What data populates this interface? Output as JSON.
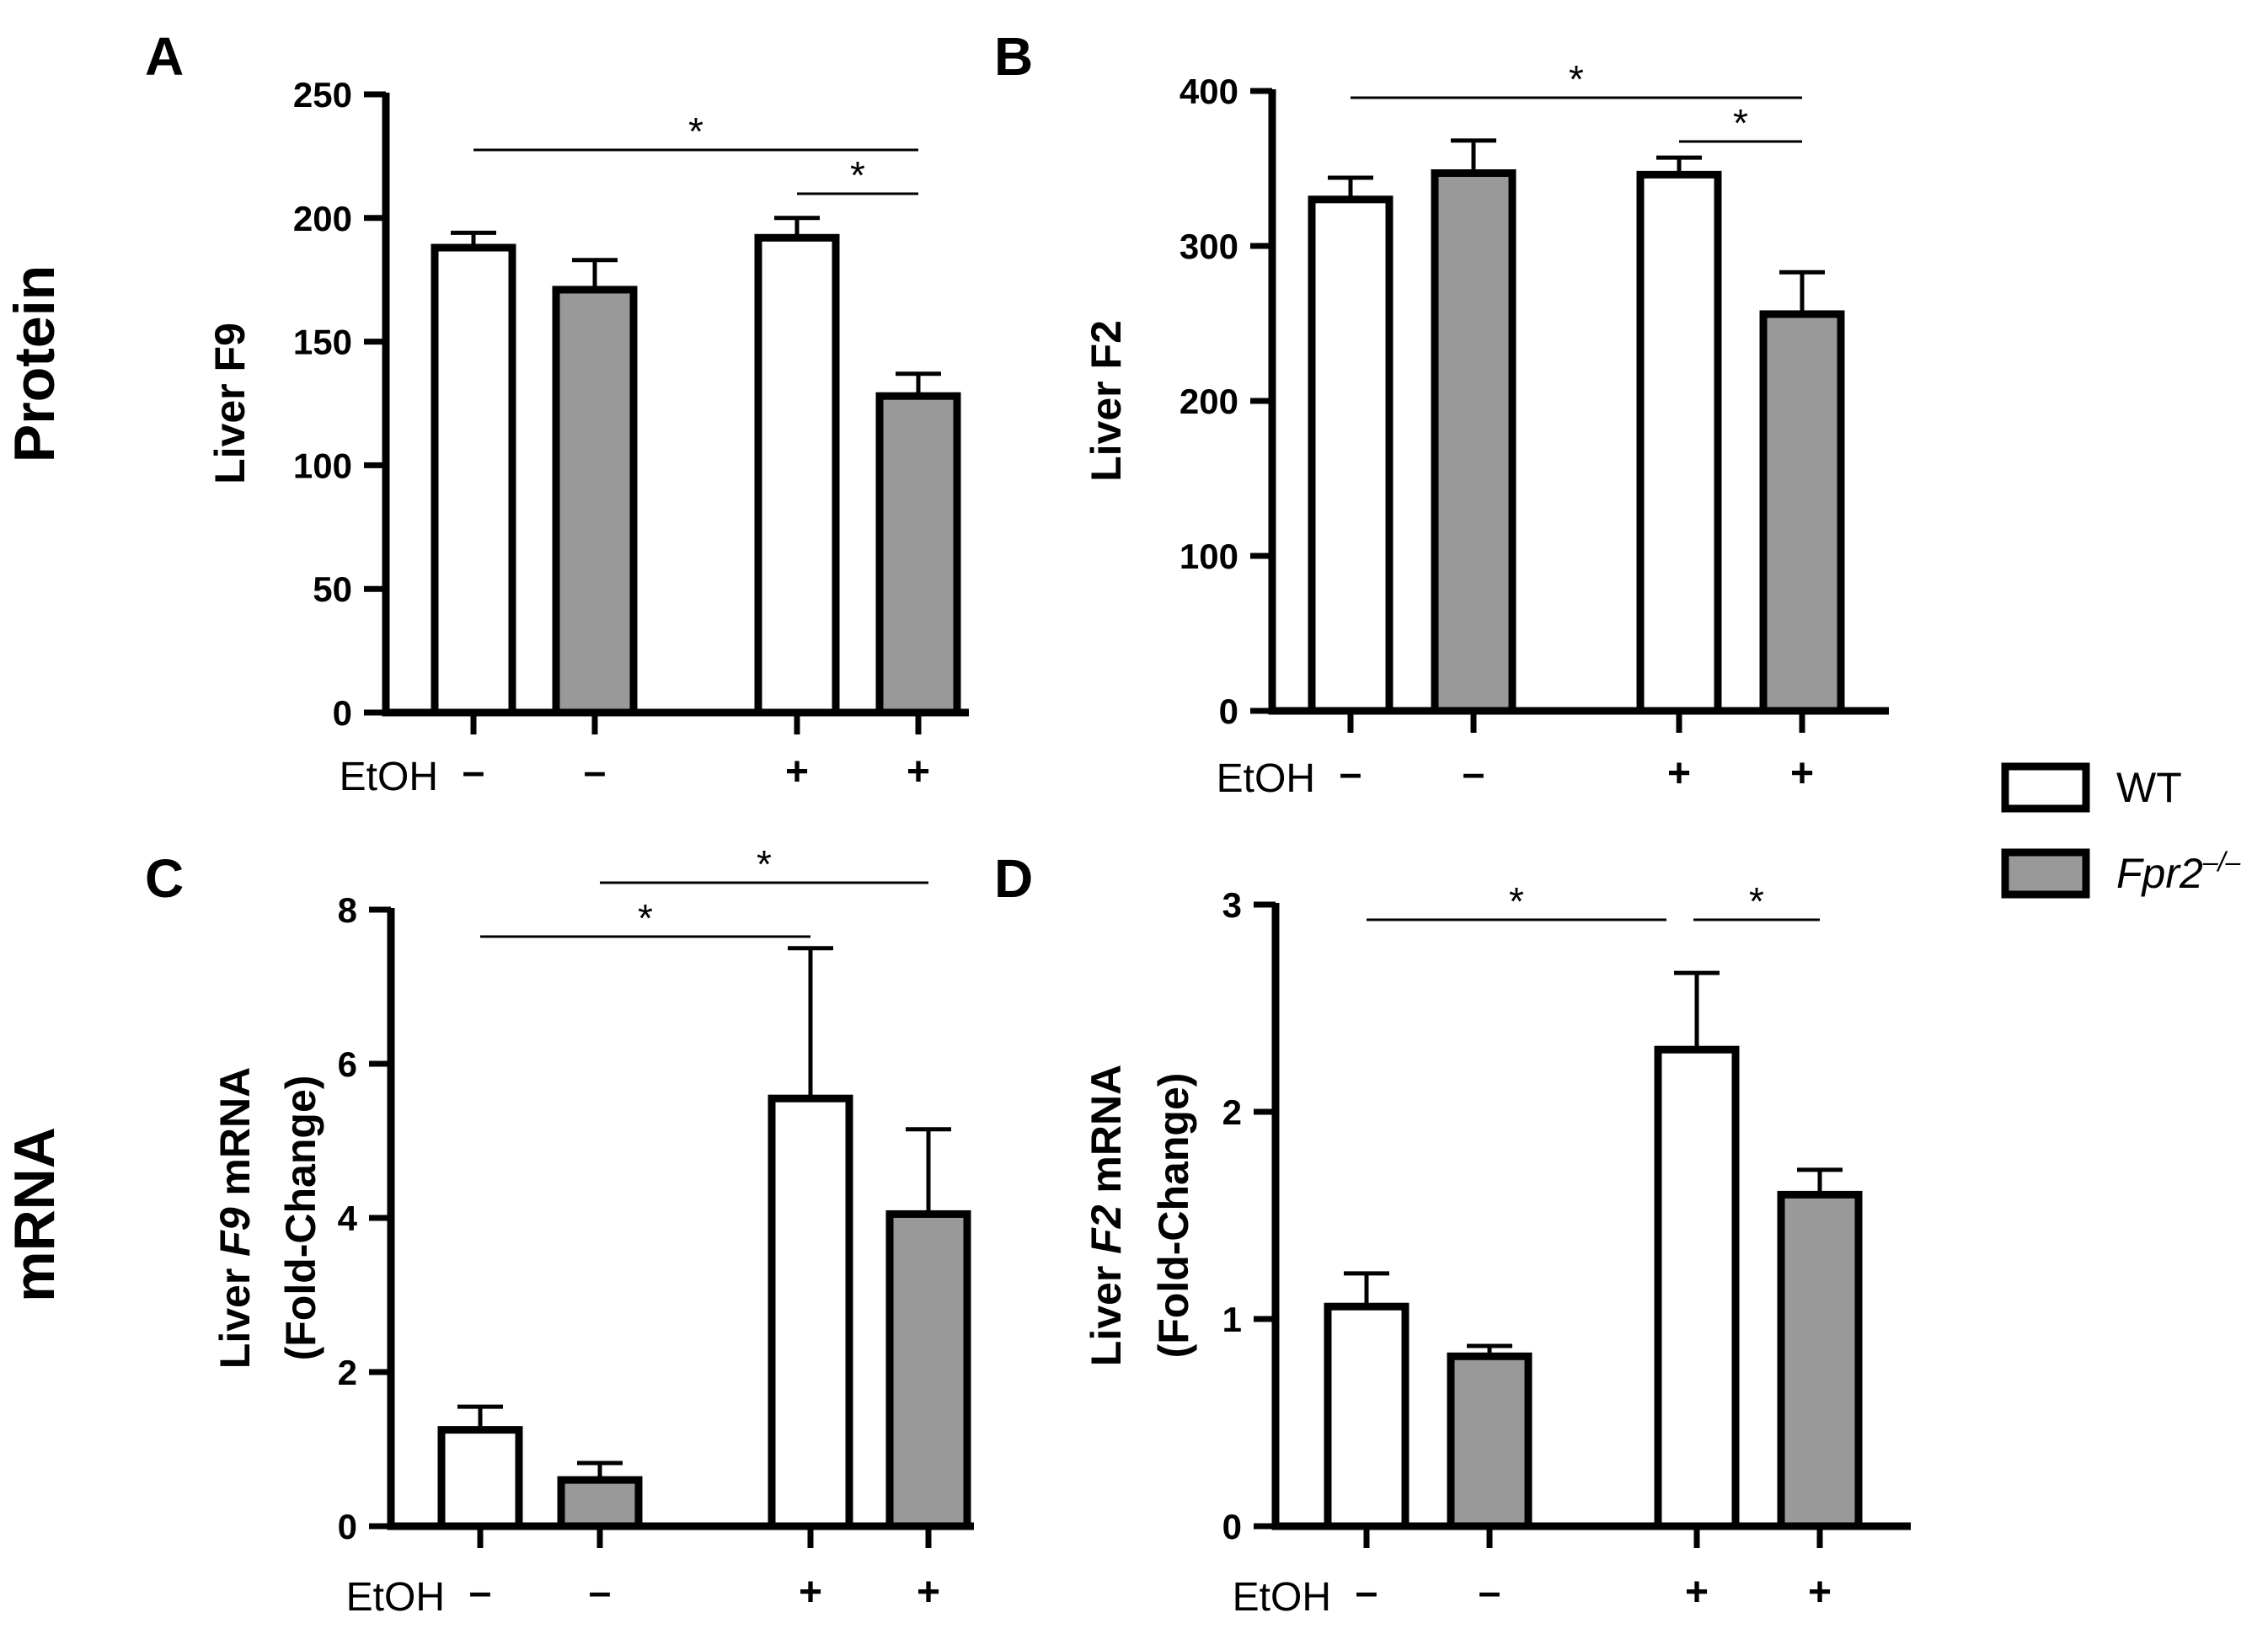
{
  "rows": {
    "protein": "Protein",
    "mrna": "mRNA"
  },
  "legend": [
    {
      "label": "WT",
      "italic": false,
      "fill": "#ffffff"
    },
    {
      "label": "Fpr2",
      "sup": "–/–",
      "italic": true,
      "fill": "#999999"
    }
  ],
  "colors": {
    "wt": "#ffffff",
    "ko": "#999999",
    "stroke": "#000000"
  },
  "chart_data": [
    {
      "type": "bar",
      "panel": "A",
      "ylabel": [
        {
          "text": "Liver F9",
          "italic": false
        }
      ],
      "ylim": [
        0,
        250
      ],
      "yticks": [
        0,
        50,
        100,
        150,
        200,
        250
      ],
      "categories_label": "EtOH",
      "categories": [
        "–",
        "–",
        "+",
        "+"
      ],
      "series": [
        {
          "name": "WT"
        },
        {
          "name": "Fpr2–/–"
        }
      ],
      "values": [
        188,
        171,
        192,
        128
      ],
      "errors": [
        6,
        12,
        8,
        9
      ],
      "groups": [
        "WT",
        "Fpr2–/–",
        "WT",
        "Fpr2–/–"
      ],
      "significance": [
        {
          "from": 0,
          "to": 3,
          "label": "*"
        },
        {
          "from": 2,
          "to": 3,
          "label": "*"
        }
      ]
    },
    {
      "type": "bar",
      "panel": "B",
      "ylabel": [
        {
          "text": "Liver F2",
          "italic": false
        }
      ],
      "ylim": [
        0,
        400
      ],
      "yticks": [
        0,
        100,
        200,
        300,
        400
      ],
      "categories_label": "EtOH",
      "categories": [
        "–",
        "–",
        "+",
        "+"
      ],
      "series": [
        {
          "name": "WT"
        },
        {
          "name": "Fpr2–/–"
        }
      ],
      "values": [
        330,
        347,
        346,
        256
      ],
      "errors": [
        14,
        21,
        11,
        27
      ],
      "groups": [
        "WT",
        "Fpr2–/–",
        "WT",
        "Fpr2–/–"
      ],
      "significance": [
        {
          "from": 0,
          "to": 3,
          "label": "*"
        },
        {
          "from": 2,
          "to": 3,
          "label": "*"
        }
      ]
    },
    {
      "type": "bar",
      "panel": "C",
      "ylabel": [
        {
          "text": "Liver ",
          "italic": false
        },
        {
          "text": "F9",
          "italic": true
        },
        {
          "text": " mRNA",
          "italic": false
        }
      ],
      "ylabel2": "(Fold-Change)",
      "ylim": [
        0,
        8
      ],
      "yticks": [
        0,
        2,
        4,
        6,
        8
      ],
      "categories_label": "EtOH",
      "categories": [
        "–",
        "–",
        "+",
        "+"
      ],
      "series": [
        {
          "name": "WT"
        },
        {
          "name": "Fpr2–/–"
        }
      ],
      "values": [
        1.25,
        0.6,
        5.55,
        4.05
      ],
      "errors": [
        0.3,
        0.22,
        1.95,
        1.1
      ],
      "groups": [
        "WT",
        "Fpr2–/–",
        "WT",
        "Fpr2–/–"
      ],
      "significance": [
        {
          "from": 0,
          "to": 2,
          "label": "*"
        },
        {
          "from": 1,
          "to": 3,
          "label": "*"
        }
      ]
    },
    {
      "type": "bar",
      "panel": "D",
      "ylabel": [
        {
          "text": "Liver ",
          "italic": false
        },
        {
          "text": "F2",
          "italic": true
        },
        {
          "text": " mRNA",
          "italic": false
        }
      ],
      "ylabel2": "(Fold-Change)",
      "ylim": [
        0,
        3
      ],
      "yticks": [
        0,
        1,
        2,
        3
      ],
      "categories_label": "EtOH",
      "categories": [
        "–",
        "–",
        "+",
        "+"
      ],
      "series": [
        {
          "name": "WT"
        },
        {
          "name": "Fpr2–/–"
        }
      ],
      "values": [
        1.06,
        0.82,
        2.3,
        1.6
      ],
      "errors": [
        0.16,
        0.05,
        0.37,
        0.12
      ],
      "groups": [
        "WT",
        "Fpr2–/–",
        "WT",
        "Fpr2–/–"
      ],
      "significance": [
        {
          "from": 0,
          "to": 2,
          "label": "*"
        },
        {
          "from": 2,
          "to": 3,
          "label": "*"
        }
      ]
    }
  ]
}
